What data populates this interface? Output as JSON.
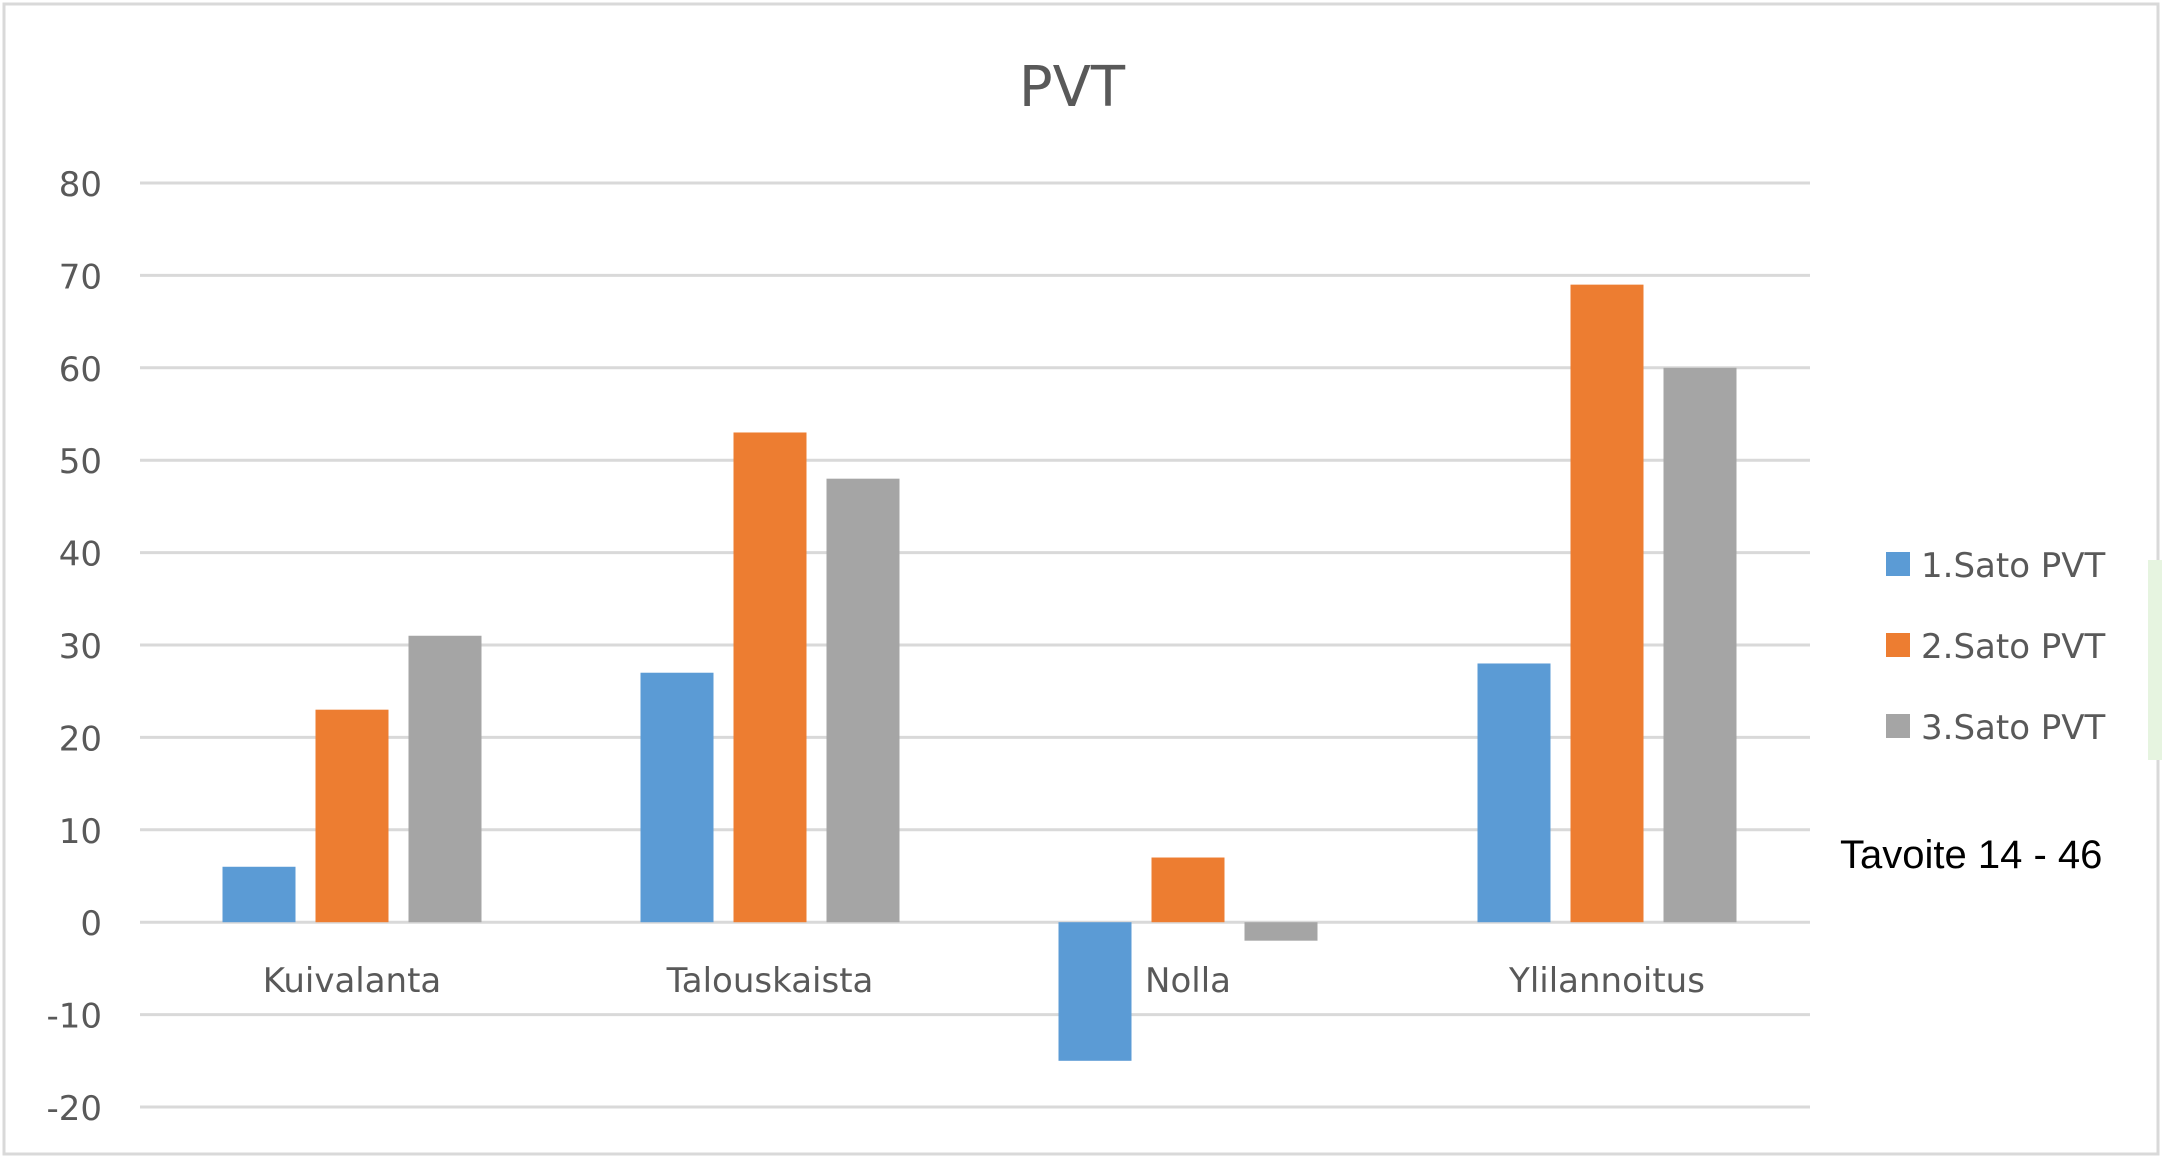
{
  "chart_data": {
    "type": "bar",
    "title": "PVT",
    "xlabel": "",
    "ylabel": "",
    "categories": [
      "Kuivalanta",
      "Talouskaista",
      "Nolla",
      "Ylilannoitus"
    ],
    "series": [
      {
        "name": "1.Sato PVT",
        "values": [
          6,
          27,
          -15,
          28
        ],
        "color": "#5B9BD5"
      },
      {
        "name": "2.Sato PVT",
        "values": [
          23,
          53,
          7,
          69
        ],
        "color": "#ED7D31"
      },
      {
        "name": "3.Sato PVT",
        "values": [
          31,
          48,
          -2,
          60
        ],
        "color": "#A5A5A5"
      }
    ],
    "ylim": [
      -20,
      80
    ],
    "yticks": [
      80,
      70,
      60,
      50,
      40,
      30,
      20,
      10,
      0,
      -10,
      -20
    ],
    "grid": true,
    "legend_position": "right",
    "annotation": "Tavoite 14 - 46",
    "accent_edge_color": "#E6F4E0"
  }
}
